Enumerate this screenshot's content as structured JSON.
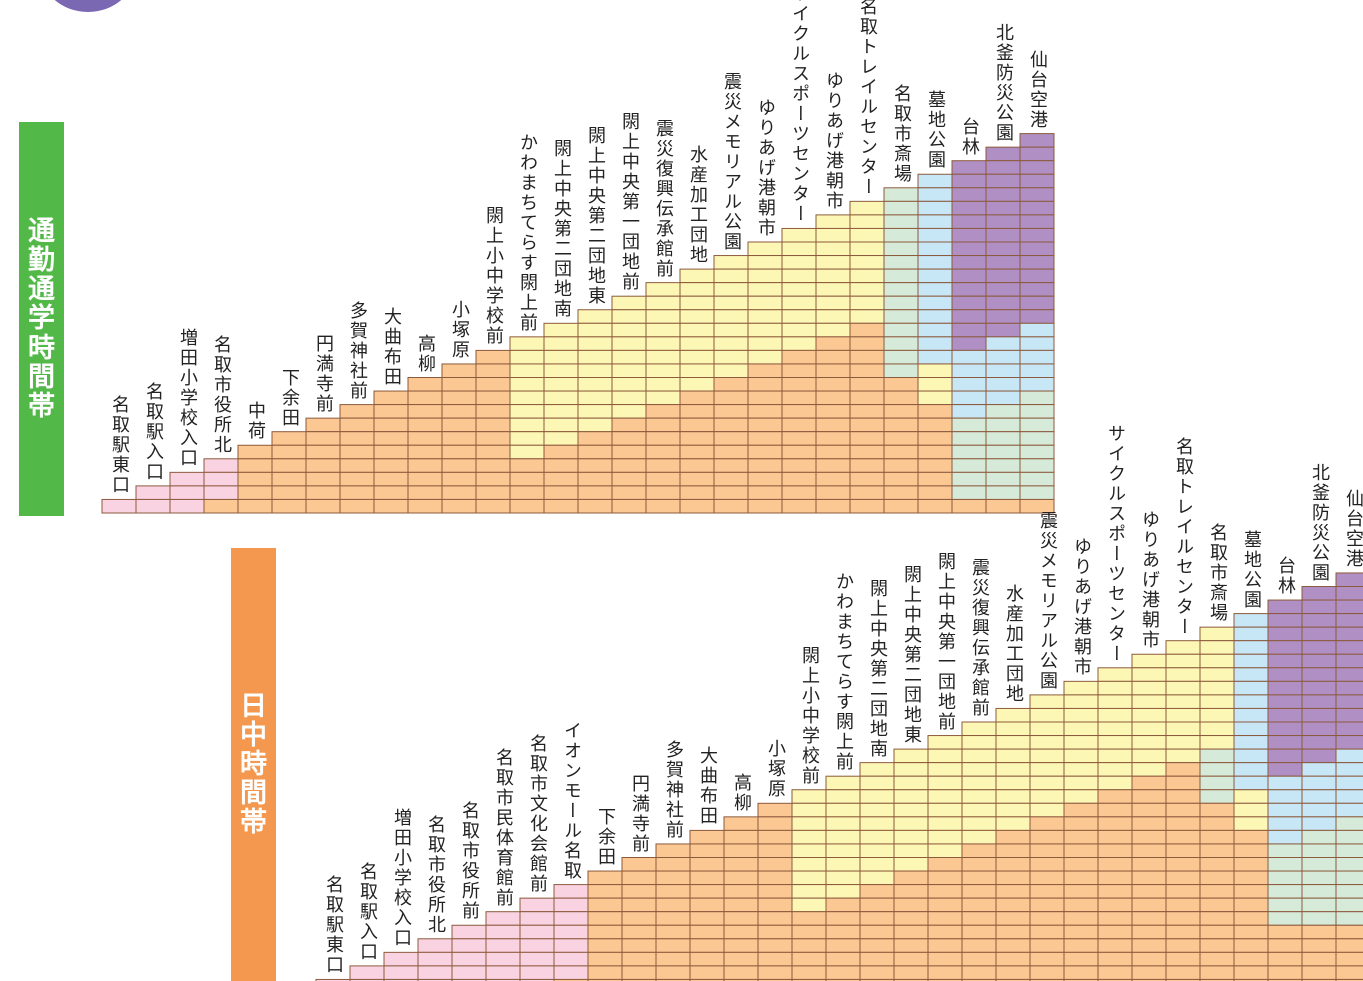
{
  "colors": {
    "header_circle": "#7a68b3",
    "commute_band": "#52b848",
    "daytime_band": "#f3984e",
    "grid_line": "#8c5a3c",
    "fare_zones": {
      "pink": "#fad3e3",
      "yellow": "#fdf7b5",
      "orange": "#fbc793",
      "green": "#d6ead9",
      "blue": "#c7e6f6",
      "purple": "#b08fc4"
    }
  },
  "commute": {
    "title": "通勤通学時間帯",
    "stops": [
      "名取駅東口",
      "名取駅入口",
      "増田小学校入口",
      "名取市役所北",
      "中荷",
      "下余田",
      "円満寺前",
      "多賀神社前",
      "大曲布田",
      "高柳",
      "小塚原",
      "閖上小中学校前",
      "かわまちてらす閖上前",
      "閖上中央第二団地南",
      "閖上中央第二団地東",
      "閖上中央第一団地前",
      "震災復興伝承館前",
      "水産加工団地",
      "震災メモリアル公園",
      "ゆりあげ港朝市",
      "サイクルスポーツセンター",
      "ゆりあげ港朝市",
      "名取トレイルセンター",
      "名取市斎場",
      "墓地公園",
      "台林",
      "北釜防災公園",
      "仙台空港"
    ]
  },
  "daytime": {
    "title": "日中時間帯",
    "stops": [
      "名取駅東口",
      "名取駅入口",
      "増田小学校入口",
      "名取市役所北",
      "名取市役所前",
      "名取市民体育館前",
      "名取市文化会館前",
      "イオンモール名取",
      "下余田",
      "円満寺前",
      "多賀神社前",
      "大曲布田",
      "高柳",
      "小塚原",
      "閖上小中学校前",
      "かわまちてらす閖上前",
      "閖上中央第二団地南",
      "閖上中央第二団地東",
      "閖上中央第一団地前",
      "震災復興伝承館前",
      "水産加工団地",
      "震災メモリアル公園",
      "ゆりあげ港朝市",
      "サイクルスポーツセンター",
      "ゆりあげ港朝市",
      "名取トレイルセンター",
      "名取市斎場",
      "墓地公園",
      "台林",
      "北釜防災公園",
      "仙台空港"
    ]
  }
}
